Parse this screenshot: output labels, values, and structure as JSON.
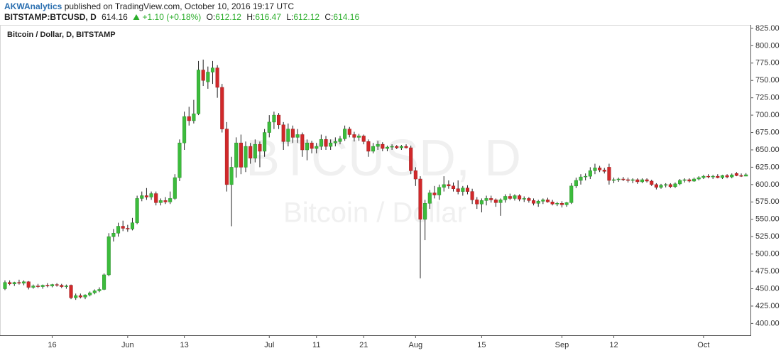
{
  "header": {
    "publisher": "AKWAnalytics",
    "published": "published on TradingView.com, October 10, 2016 19:17 UTC",
    "symbol": "BITSTAMP:BTCUSD, D",
    "change": "+1.10 (+0.18%)",
    "ohlc_labels": [
      "O:",
      "H:",
      "L:",
      "C:"
    ]
  },
  "chart_data": {
    "type": "candlestick",
    "title": "Bitcoin / Dollar, D, BITSTAMP",
    "watermark": [
      "BTCUSD, D",
      "Bitcoin / Dollar"
    ],
    "up_color": "#3cbc3c",
    "down_color": "#d1282a",
    "wick_color": "#222222",
    "ylim": [
      383,
      829
    ],
    "yticks": [
      {
        "value": 400,
        "label": "400.00"
      },
      {
        "value": 425,
        "label": "425.00"
      },
      {
        "value": 450,
        "label": "450.00"
      },
      {
        "value": 475,
        "label": "475.00"
      },
      {
        "value": 500,
        "label": "500.00"
      },
      {
        "value": 525,
        "label": "525.00"
      },
      {
        "value": 550,
        "label": "550.00"
      },
      {
        "value": 575,
        "label": "575.00"
      },
      {
        "value": 600,
        "label": "600.00"
      },
      {
        "value": 625,
        "label": "625.00"
      },
      {
        "value": 650,
        "label": "650.00"
      },
      {
        "value": 675,
        "label": "675.00"
      },
      {
        "value": 700,
        "label": "700.00"
      },
      {
        "value": 725,
        "label": "725.00"
      },
      {
        "value": 750,
        "label": "750.00"
      },
      {
        "value": 775,
        "label": "775.00"
      },
      {
        "value": 800,
        "label": "800.00"
      },
      {
        "value": 825,
        "label": "825.00"
      }
    ],
    "grid": false,
    "categories": [
      null,
      null,
      null,
      null,
      null,
      null,
      null,
      null,
      null,
      null,
      "16",
      null,
      null,
      null,
      null,
      null,
      null,
      null,
      null,
      null,
      null,
      null,
      null,
      null,
      null,
      null,
      "Jun",
      null,
      null,
      null,
      null,
      null,
      null,
      null,
      null,
      null,
      null,
      null,
      "13",
      null,
      null,
      null,
      null,
      null,
      null,
      null,
      null,
      null,
      null,
      null,
      null,
      null,
      null,
      null,
      null,
      null,
      "Jul",
      null,
      null,
      null,
      null,
      null,
      null,
      null,
      null,
      null,
      "11",
      null,
      null,
      null,
      null,
      null,
      null,
      null,
      null,
      null,
      "21",
      null,
      null,
      null,
      null,
      null,
      null,
      null,
      null,
      null,
      null,
      "Aug",
      null,
      null,
      null,
      null,
      null,
      null,
      null,
      null,
      null,
      null,
      null,
      null,
      null,
      "15",
      null,
      null,
      null,
      null,
      null,
      null,
      null,
      null,
      null,
      null,
      null,
      null,
      null,
      null,
      null,
      null,
      "Sep",
      null,
      null,
      null,
      null,
      null,
      null,
      null,
      null,
      null,
      null,
      "12",
      null,
      null,
      null,
      null,
      null,
      null,
      null,
      null,
      null,
      null,
      null,
      null,
      null,
      null,
      null,
      null,
      null,
      null,
      "Oct",
      null,
      null,
      null,
      null,
      null,
      null,
      null,
      null,
      null
    ],
    "ohlc": [
      [
        450,
        462,
        448,
        459
      ],
      [
        459,
        462,
        455,
        457
      ],
      [
        457,
        460,
        454,
        459
      ],
      [
        459,
        463,
        456,
        458
      ],
      [
        458,
        462,
        455,
        460
      ],
      [
        460,
        461,
        449,
        452
      ],
      [
        452,
        456,
        450,
        454
      ],
      [
        454,
        457,
        451,
        453
      ],
      [
        453,
        456,
        450,
        455
      ],
      [
        455,
        458,
        452,
        454
      ],
      [
        454,
        457,
        452,
        456
      ],
      [
        456,
        458,
        453,
        455
      ],
      [
        455,
        457,
        451,
        453
      ],
      [
        453,
        456,
        450,
        454
      ],
      [
        455,
        456,
        435,
        437
      ],
      [
        437,
        443,
        434,
        440
      ],
      [
        440,
        443,
        436,
        438
      ],
      [
        438,
        442,
        435,
        441
      ],
      [
        441,
        446,
        439,
        444
      ],
      [
        444,
        449,
        442,
        447
      ],
      [
        447,
        452,
        445,
        449
      ],
      [
        449,
        472,
        448,
        470
      ],
      [
        470,
        530,
        468,
        525
      ],
      [
        525,
        536,
        518,
        530
      ],
      [
        530,
        545,
        525,
        540
      ],
      [
        540,
        548,
        533,
        537
      ],
      [
        537,
        542,
        532,
        536
      ],
      [
        536,
        552,
        534,
        545
      ],
      [
        545,
        584,
        543,
        580
      ],
      [
        580,
        590,
        576,
        584
      ],
      [
        584,
        595,
        578,
        582
      ],
      [
        582,
        590,
        578,
        587
      ],
      [
        587,
        590,
        570,
        574
      ],
      [
        574,
        580,
        570,
        577
      ],
      [
        577,
        582,
        572,
        575
      ],
      [
        575,
        590,
        572,
        580
      ],
      [
        580,
        615,
        578,
        610
      ],
      [
        610,
        665,
        605,
        660
      ],
      [
        660,
        705,
        650,
        698
      ],
      [
        698,
        712,
        685,
        692
      ],
      [
        692,
        722,
        688,
        702
      ],
      [
        702,
        778,
        700,
        765
      ],
      [
        765,
        780,
        742,
        750
      ],
      [
        748,
        770,
        738,
        762
      ],
      [
        762,
        778,
        745,
        768
      ],
      [
        768,
        772,
        725,
        740
      ],
      [
        740,
        745,
        675,
        680
      ],
      [
        680,
        690,
        590,
        600
      ],
      [
        600,
        640,
        540,
        625
      ],
      [
        625,
        668,
        610,
        660
      ],
      [
        660,
        672,
        615,
        625
      ],
      [
        625,
        662,
        618,
        655
      ],
      [
        655,
        660,
        630,
        638
      ],
      [
        638,
        665,
        632,
        658
      ],
      [
        658,
        662,
        625,
        648
      ],
      [
        648,
        680,
        640,
        675
      ],
      [
        675,
        700,
        668,
        690
      ],
      [
        690,
        705,
        680,
        700
      ],
      [
        700,
        703,
        680,
        686
      ],
      [
        686,
        690,
        650,
        662
      ],
      [
        662,
        688,
        655,
        680
      ],
      [
        680,
        685,
        660,
        668
      ],
      [
        668,
        680,
        660,
        672
      ],
      [
        672,
        675,
        640,
        650
      ],
      [
        650,
        665,
        635,
        660
      ],
      [
        660,
        663,
        645,
        652
      ],
      [
        652,
        660,
        645,
        655
      ],
      [
        655,
        672,
        650,
        665
      ],
      [
        665,
        670,
        650,
        655
      ],
      [
        655,
        665,
        650,
        660
      ],
      [
        660,
        668,
        655,
        662
      ],
      [
        662,
        670,
        658,
        666
      ],
      [
        666,
        685,
        663,
        680
      ],
      [
        680,
        683,
        668,
        672
      ],
      [
        672,
        676,
        662,
        668
      ],
      [
        668,
        673,
        663,
        670
      ],
      [
        670,
        672,
        658,
        662
      ],
      [
        662,
        665,
        640,
        648
      ],
      [
        648,
        660,
        645,
        655
      ],
      [
        655,
        663,
        650,
        658
      ],
      [
        658,
        661,
        648,
        652
      ],
      [
        652,
        656,
        648,
        654
      ],
      [
        654,
        658,
        650,
        655
      ],
      [
        655,
        657,
        651,
        653
      ],
      [
        653,
        657,
        650,
        655
      ],
      [
        655,
        658,
        652,
        653
      ],
      [
        653,
        656,
        615,
        620
      ],
      [
        620,
        625,
        598,
        608
      ],
      [
        608,
        612,
        465,
        550
      ],
      [
        550,
        578,
        520,
        573
      ],
      [
        573,
        592,
        565,
        588
      ],
      [
        588,
        598,
        580,
        585
      ],
      [
        585,
        600,
        578,
        596
      ],
      [
        596,
        612,
        590,
        600
      ],
      [
        600,
        606,
        594,
        598
      ],
      [
        598,
        603,
        590,
        594
      ],
      [
        594,
        606,
        586,
        590
      ],
      [
        590,
        598,
        584,
        595
      ],
      [
        595,
        599,
        586,
        590
      ],
      [
        590,
        594,
        572,
        578
      ],
      [
        578,
        582,
        565,
        572
      ],
      [
        572,
        580,
        560,
        577
      ],
      [
        577,
        584,
        570,
        580
      ],
      [
        580,
        584,
        574,
        578
      ],
      [
        578,
        580,
        568,
        574
      ],
      [
        574,
        580,
        555,
        578
      ],
      [
        578,
        586,
        574,
        583
      ],
      [
        583,
        587,
        578,
        580
      ],
      [
        580,
        586,
        577,
        584
      ],
      [
        584,
        586,
        576,
        579
      ],
      [
        579,
        583,
        575,
        580
      ],
      [
        580,
        582,
        574,
        577
      ],
      [
        577,
        580,
        570,
        573
      ],
      [
        573,
        578,
        568,
        576
      ],
      [
        576,
        580,
        572,
        578
      ],
      [
        578,
        581,
        574,
        575
      ],
      [
        575,
        578,
        570,
        572
      ],
      [
        572,
        575,
        569,
        573
      ],
      [
        573,
        576,
        567,
        571
      ],
      [
        571,
        575,
        568,
        574
      ],
      [
        574,
        602,
        572,
        598
      ],
      [
        598,
        610,
        595,
        606
      ],
      [
        606,
        615,
        600,
        611
      ],
      [
        611,
        616,
        606,
        612
      ],
      [
        612,
        625,
        608,
        620
      ],
      [
        620,
        630,
        615,
        624
      ],
      [
        624,
        627,
        618,
        621
      ],
      [
        621,
        624,
        616,
        619
      ],
      [
        625,
        630,
        600,
        606
      ],
      [
        606,
        610,
        602,
        607
      ],
      [
        607,
        610,
        604,
        608
      ],
      [
        608,
        611,
        605,
        607
      ],
      [
        607,
        610,
        603,
        606
      ],
      [
        606,
        609,
        602,
        607
      ],
      [
        607,
        609,
        601,
        604
      ],
      [
        604,
        609,
        602,
        607
      ],
      [
        607,
        609,
        603,
        605
      ],
      [
        605,
        607,
        598,
        600
      ],
      [
        600,
        602,
        593,
        596
      ],
      [
        596,
        601,
        594,
        599
      ],
      [
        599,
        602,
        596,
        600
      ],
      [
        600,
        602,
        595,
        597
      ],
      [
        597,
        603,
        595,
        601
      ],
      [
        601,
        608,
        599,
        606
      ],
      [
        606,
        609,
        603,
        607
      ],
      [
        607,
        609,
        603,
        605
      ],
      [
        605,
        610,
        604,
        608
      ],
      [
        608,
        612,
        606,
        610
      ],
      [
        610,
        614,
        608,
        612
      ],
      [
        612,
        615,
        609,
        611
      ],
      [
        611,
        614,
        608,
        612
      ],
      [
        612,
        615,
        609,
        610
      ],
      [
        610,
        614,
        608,
        613
      ],
      [
        613,
        615,
        609,
        611
      ],
      [
        611,
        616,
        609,
        614
      ],
      [
        616,
        618,
        612,
        613
      ],
      [
        613,
        616,
        611,
        612
      ],
      [
        612.12,
        616.47,
        612.12,
        614.16
      ]
    ]
  }
}
